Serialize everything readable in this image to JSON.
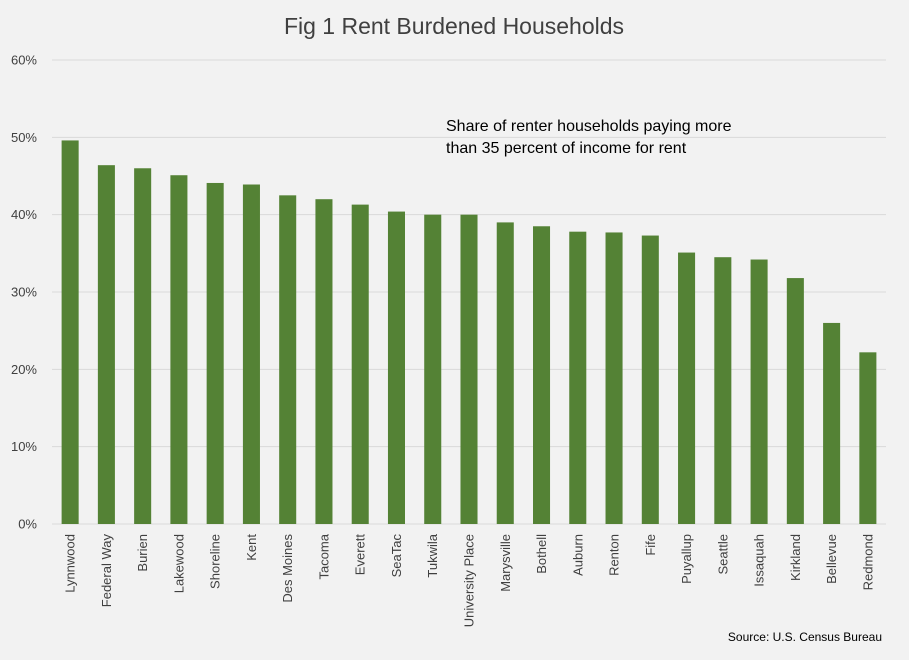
{
  "chart_data": {
    "type": "bar",
    "title": "Fig 1 Rent Burdened Households",
    "annotation": [
      "Share of renter households paying more",
      "than 35 percent of income for rent"
    ],
    "source": "Source: U.S. Census Bureau",
    "xlabel": "",
    "ylabel": "",
    "ylim": [
      0,
      60
    ],
    "y_ticks": [
      0,
      10,
      20,
      30,
      40,
      50,
      60
    ],
    "y_tick_labels": [
      "0%",
      "10%",
      "20%",
      "30%",
      "40%",
      "50%",
      "60%"
    ],
    "grid": true,
    "legend": "none",
    "bar_color": "#548235",
    "grid_color": "#d9d9d9",
    "categories": [
      "Lynnwood",
      "Federal Way",
      "Burien",
      "Lakewood",
      "Shoreline",
      "Kent",
      "Des Moines",
      "Tacoma",
      "Everett",
      "SeaTac",
      "Tukwila",
      "University Place",
      "Marysville",
      "Bothell",
      "Auburn",
      "Renton",
      "Fife",
      "Puyallup",
      "Seattle",
      "Issaquah",
      "Kirkland",
      "Bellevue",
      "Redmond"
    ],
    "values": [
      49.6,
      46.4,
      46.0,
      45.1,
      44.1,
      43.9,
      42.5,
      42.0,
      41.3,
      40.4,
      40.0,
      40.0,
      39.0,
      38.5,
      37.8,
      37.7,
      37.3,
      35.1,
      34.5,
      34.2,
      31.8,
      26.0,
      22.2
    ]
  }
}
